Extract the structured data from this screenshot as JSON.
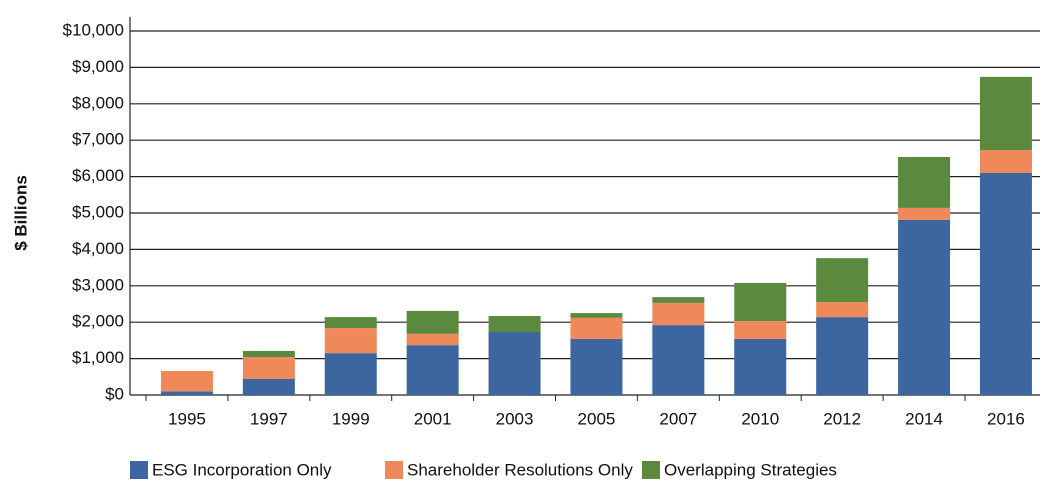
{
  "chart_data": {
    "type": "stacked_bar",
    "y_label": "$ Billions",
    "categories": [
      "1995",
      "1997",
      "1999",
      "2001",
      "2003",
      "2005",
      "2007",
      "2010",
      "2012",
      "2014",
      "2016"
    ],
    "series": [
      {
        "name": "ESG Incorporation Only",
        "color": "#3b66a0",
        "values": [
          100,
          440,
          1150,
          1370,
          1730,
          1540,
          1920,
          1540,
          2140,
          4810,
          6100
        ]
      },
      {
        "name": "Shareholder Resolutions Only",
        "color": "#f0895a",
        "values": [
          560,
          600,
          690,
          310,
          0,
          580,
          610,
          490,
          410,
          330,
          630
        ]
      },
      {
        "name": "Overlapping Strategies",
        "color": "#5b8a3e",
        "values": [
          0,
          170,
          300,
          630,
          440,
          130,
          160,
          1050,
          1210,
          1400,
          2010
        ]
      }
    ],
    "ylim": [
      0,
      10000
    ],
    "yticks": [
      {
        "value": 0,
        "label": "$0"
      },
      {
        "value": 1000,
        "label": "$1,000"
      },
      {
        "value": 2000,
        "label": "$2,000"
      },
      {
        "value": 3000,
        "label": "$3,000"
      },
      {
        "value": 4000,
        "label": "$4,000"
      },
      {
        "value": 5000,
        "label": "$5,000"
      },
      {
        "value": 6000,
        "label": "$6,000"
      },
      {
        "value": 7000,
        "label": "$7,000"
      },
      {
        "value": 8000,
        "label": "$8,000"
      },
      {
        "value": 9000,
        "label": "$9,000"
      },
      {
        "value": 10000,
        "label": "$10,000"
      }
    ],
    "grid": true,
    "legend": "bottom"
  }
}
